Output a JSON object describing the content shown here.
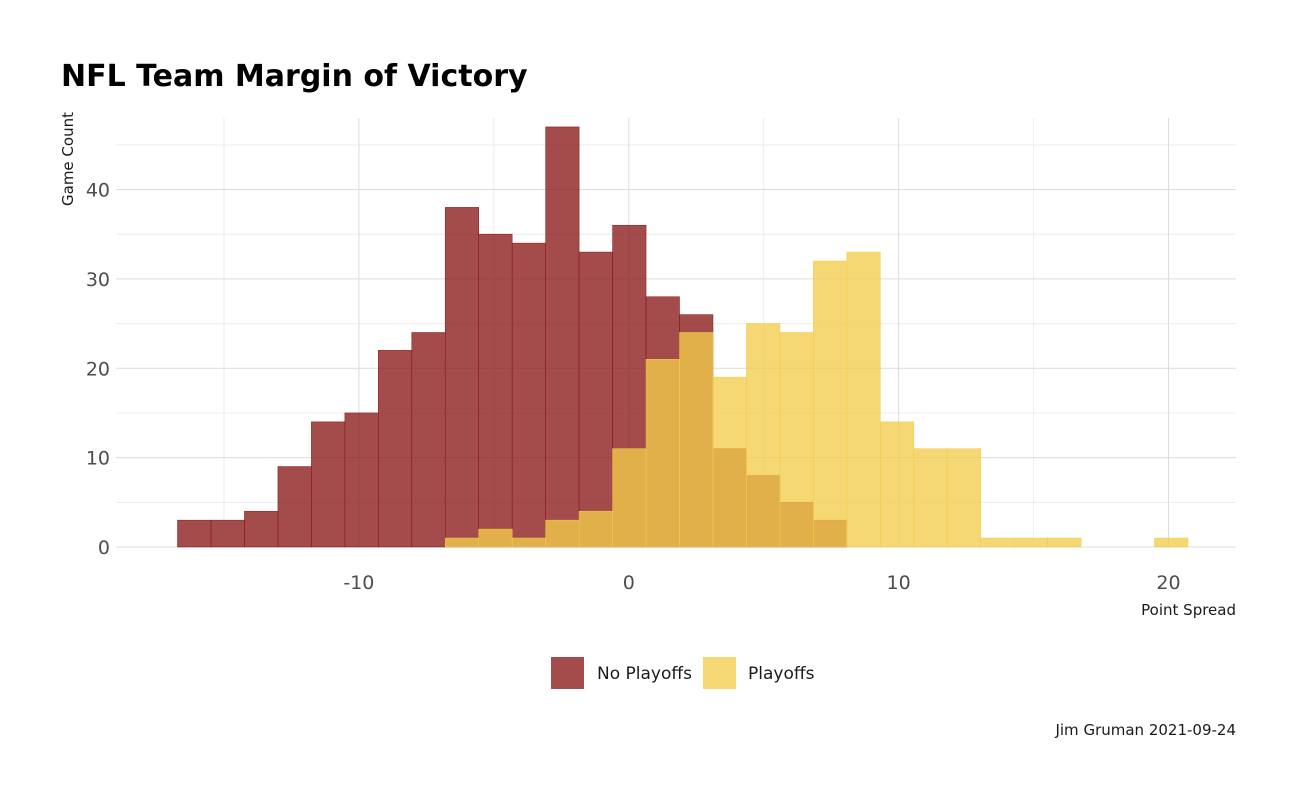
{
  "chart_data": {
    "type": "bar",
    "subtype": "overlapping-histogram",
    "title": "NFL Team Margin of Victory",
    "xlabel": "Point Spread",
    "ylabel": "Game Count",
    "caption": "Jim Gruman 2021-09-24",
    "xlim": [
      -19,
      22.5
    ],
    "ylim": [
      0,
      48
    ],
    "x_ticks": [
      -10,
      0,
      10,
      20
    ],
    "x_tick_labels": [
      "-10",
      "0",
      "10",
      "20"
    ],
    "y_ticks": [
      0,
      10,
      20,
      30,
      40
    ],
    "y_tick_labels": [
      "0",
      "10",
      "20",
      "30",
      "40"
    ],
    "grid": true,
    "legend_position": "bottom",
    "bin_width": 1.24,
    "series": [
      {
        "name": "No Playoffs",
        "color": "#8b1a1a",
        "opacity": 0.78,
        "bin_centers": [
          -16.1,
          -14.86,
          -13.62,
          -12.38,
          -11.14,
          -9.9,
          -8.66,
          -7.42,
          -6.18,
          -4.94,
          -3.7,
          -2.46,
          -1.22,
          0.02,
          1.26,
          2.5,
          3.74,
          4.98,
          6.22,
          7.46
        ],
        "values": [
          3,
          3,
          4,
          9,
          14,
          15,
          22,
          24,
          38,
          35,
          34,
          47,
          33,
          36,
          28,
          26,
          11,
          8,
          5,
          3
        ]
      },
      {
        "name": "Playoffs",
        "color": "#f2cd4b",
        "opacity": 0.78,
        "bin_centers": [
          -6.18,
          -4.94,
          -3.7,
          -2.46,
          -1.22,
          0.02,
          1.26,
          2.5,
          3.74,
          4.98,
          6.22,
          7.46,
          8.7,
          9.94,
          11.18,
          12.42,
          13.66,
          14.9,
          16.14,
          20.1
        ],
        "values": [
          1,
          2,
          1,
          3,
          4,
          11,
          21,
          24,
          19,
          25,
          24,
          32,
          33,
          14,
          11,
          11,
          1,
          1,
          1,
          1
        ]
      }
    ]
  }
}
